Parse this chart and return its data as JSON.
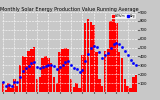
{
  "title": "Monthly Solar Energy Production Value Running Average",
  "bar_color": "#ff0000",
  "avg_color": "#0000ff",
  "background": "#c8c8c8",
  "grid_color": "#ffffff",
  "plot_bg": "#c8c8c8",
  "ylim": [
    0,
    900
  ],
  "yticks": [
    100,
    200,
    300,
    400,
    500,
    600,
    700,
    800,
    900
  ],
  "bars": [
    115,
    25,
    100,
    40,
    150,
    70,
    300,
    410,
    390,
    460,
    480,
    510,
    150,
    170,
    380,
    410,
    380,
    330,
    170,
    105,
    450,
    480,
    500,
    480,
    150,
    60,
    105,
    50,
    420,
    780,
    820,
    790,
    750,
    450,
    145,
    70,
    460,
    480,
    800,
    820,
    780,
    450,
    380,
    145,
    70,
    50,
    170,
    190
  ],
  "avg": [
    115,
    70,
    80,
    70,
    108,
    118,
    172,
    232,
    270,
    298,
    322,
    332,
    282,
    266,
    282,
    292,
    307,
    304,
    287,
    257,
    277,
    302,
    332,
    347,
    302,
    275,
    254,
    220,
    242,
    347,
    432,
    492,
    522,
    502,
    447,
    387,
    412,
    437,
    492,
    537,
    552,
    537,
    502,
    462,
    412,
    362,
    322,
    302
  ],
  "n_bars": 48,
  "legend_labels": [
    "kWh/m",
    "Avg"
  ],
  "title_fontsize": 3.5,
  "tick_fontsize": 2.8
}
